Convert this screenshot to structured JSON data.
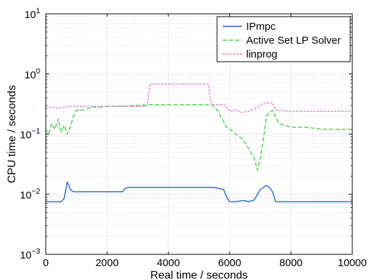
{
  "chart_data": {
    "type": "line",
    "title": "",
    "xlabel": "Real time / seconds",
    "ylabel": "CPU time / seconds",
    "xlim": [
      0,
      10000
    ],
    "ylim": [
      0.001,
      10
    ],
    "yscale": "log",
    "grid": true,
    "legend_position": "top-right",
    "x_ticks": [
      {
        "value": 0,
        "label": "0"
      },
      {
        "value": 2000,
        "label": "2000"
      },
      {
        "value": 4000,
        "label": "4000"
      },
      {
        "value": 6000,
        "label": "6000"
      },
      {
        "value": 8000,
        "label": "8000"
      },
      {
        "value": 10000,
        "label": "10000"
      }
    ],
    "y_ticks": [
      {
        "value": 0.001,
        "base": "10",
        "exp": "−3"
      },
      {
        "value": 0.01,
        "base": "10",
        "exp": "−2"
      },
      {
        "value": 0.1,
        "base": "10",
        "exp": "−1"
      },
      {
        "value": 1,
        "base": "10",
        "exp": "0"
      },
      {
        "value": 10,
        "base": "10",
        "exp": "1"
      }
    ],
    "series": [
      {
        "name": "IPmpc",
        "color": "#1f5fe0",
        "dash": "solid",
        "x": [
          0,
          150,
          300,
          500,
          600,
          700,
          750,
          800,
          900,
          1000,
          1200,
          1500,
          1800,
          2000,
          2200,
          2500,
          2600,
          2700,
          3000,
          3500,
          4000,
          4500,
          5000,
          5500,
          5800,
          5900,
          6000,
          6200,
          6400,
          6500,
          6600,
          6800,
          7000,
          7200,
          7300,
          7400,
          7500,
          8000,
          8500,
          9000,
          9500,
          10000
        ],
        "y": [
          0.0075,
          0.0075,
          0.0075,
          0.0075,
          0.0085,
          0.016,
          0.014,
          0.012,
          0.011,
          0.011,
          0.011,
          0.011,
          0.011,
          0.011,
          0.011,
          0.011,
          0.0125,
          0.013,
          0.013,
          0.013,
          0.013,
          0.013,
          0.013,
          0.013,
          0.012,
          0.009,
          0.0075,
          0.0075,
          0.0078,
          0.0078,
          0.0075,
          0.008,
          0.012,
          0.014,
          0.013,
          0.011,
          0.0075,
          0.0075,
          0.0075,
          0.0075,
          0.0075,
          0.0075
        ]
      },
      {
        "name": "Active Set LP Solver",
        "color": "#33d933",
        "dash": "6,3",
        "x": [
          0,
          100,
          200,
          300,
          400,
          500,
          600,
          700,
          800,
          900,
          1000,
          1200,
          1500,
          1800,
          2000,
          2500,
          3000,
          3500,
          4000,
          4500,
          5000,
          5400,
          5600,
          5700,
          5800,
          5900,
          6000,
          6200,
          6400,
          6600,
          6800,
          6900,
          7000,
          7100,
          7200,
          7400,
          7600,
          7800,
          8000,
          8200,
          8500,
          9000,
          9500,
          10000
        ],
        "y": [
          0.12,
          0.1,
          0.15,
          0.12,
          0.18,
          0.11,
          0.14,
          0.1,
          0.13,
          0.2,
          0.25,
          0.25,
          0.28,
          0.28,
          0.29,
          0.29,
          0.3,
          0.31,
          0.31,
          0.31,
          0.31,
          0.31,
          0.25,
          0.2,
          0.16,
          0.13,
          0.12,
          0.1,
          0.085,
          0.06,
          0.04,
          0.025,
          0.04,
          0.08,
          0.2,
          0.25,
          0.15,
          0.14,
          0.13,
          0.13,
          0.13,
          0.12,
          0.12,
          0.12
        ]
      },
      {
        "name": "linprog",
        "color": "#ee6ee6",
        "dash": "3,2",
        "x": [
          0,
          200,
          400,
          600,
          800,
          1000,
          1500,
          2000,
          2500,
          3000,
          3300,
          3400,
          3600,
          4000,
          4500,
          5000,
          5300,
          5400,
          5800,
          5900,
          6000,
          6200,
          6400,
          6600,
          6800,
          7000,
          7200,
          7400,
          7500,
          8000,
          8500,
          9000,
          9500,
          10000
        ],
        "y": [
          0.27,
          0.28,
          0.27,
          0.28,
          0.29,
          0.29,
          0.29,
          0.29,
          0.29,
          0.29,
          0.29,
          0.68,
          0.68,
          0.68,
          0.68,
          0.68,
          0.68,
          0.31,
          0.31,
          0.28,
          0.24,
          0.25,
          0.23,
          0.24,
          0.26,
          0.3,
          0.33,
          0.33,
          0.25,
          0.24,
          0.24,
          0.24,
          0.24,
          0.24
        ]
      }
    ]
  }
}
